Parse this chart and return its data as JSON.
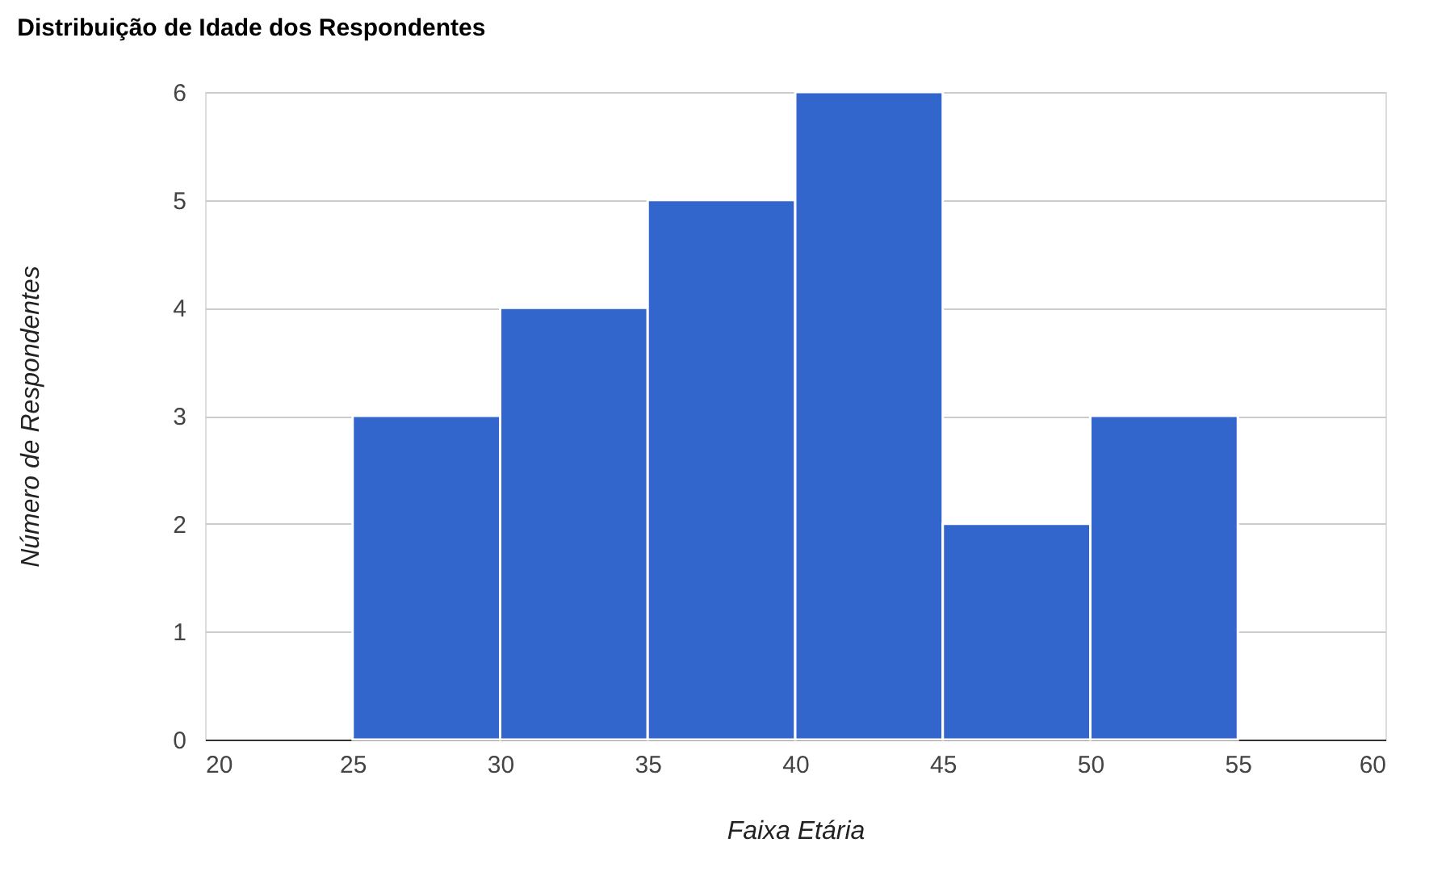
{
  "chart_data": {
    "type": "histogram",
    "title": "Distribuição de Idade dos Respondentes",
    "xlabel": "Faixa Etária",
    "ylabel": "Número de Respondentes",
    "bins": [
      25,
      30,
      35,
      40,
      45,
      50,
      55
    ],
    "values": [
      3,
      4,
      5,
      6,
      2,
      3
    ],
    "color": "#3366cc",
    "xlim": [
      20,
      60
    ],
    "xticks": [
      20,
      25,
      30,
      35,
      40,
      45,
      50,
      55,
      60
    ],
    "ylim": [
      0,
      6
    ],
    "yticks": [
      0,
      1,
      2,
      3,
      4,
      5,
      6
    ],
    "grid": "y"
  }
}
